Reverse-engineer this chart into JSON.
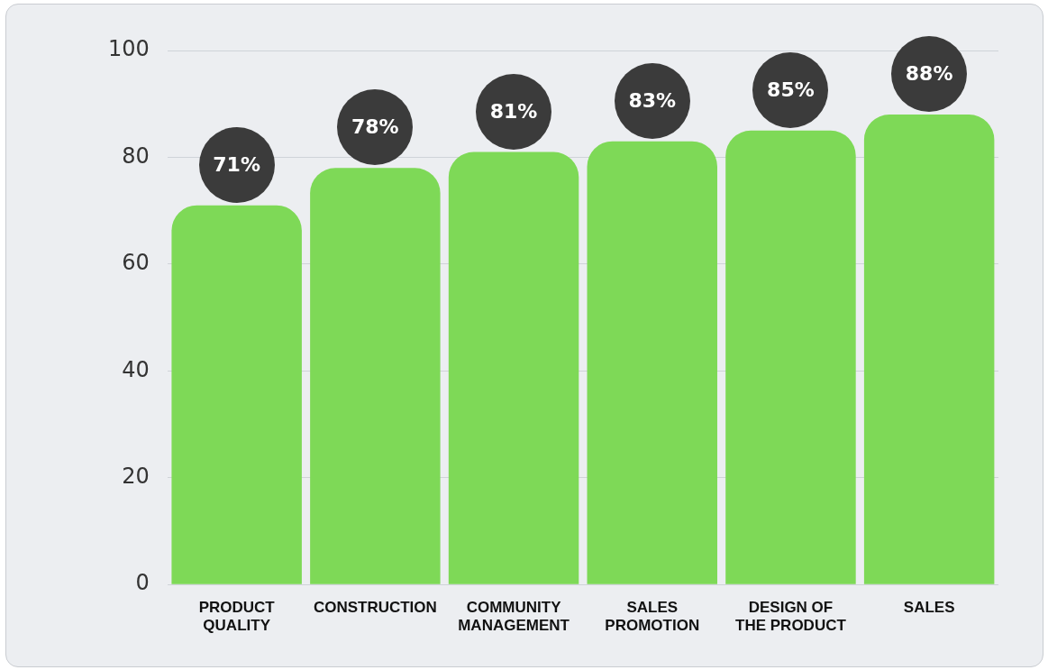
{
  "chart_data": {
    "type": "bar",
    "categories": [
      "PRODUCT QUALITY",
      "CONSTRUCTION",
      "COMMUNITY MANAGEMENT",
      "SALES PROMOTION",
      "DESIGN OF THE PRODUCT",
      "SALES"
    ],
    "values": [
      71,
      78,
      81,
      83,
      85,
      88
    ],
    "value_labels": [
      "71%",
      "78%",
      "81%",
      "83%",
      "85%",
      "88%"
    ],
    "color": "#7ed957",
    "ylim": [
      0,
      100
    ],
    "yticks": [
      0,
      20,
      40,
      60,
      80,
      100
    ],
    "grid": "y",
    "legend": false
  }
}
